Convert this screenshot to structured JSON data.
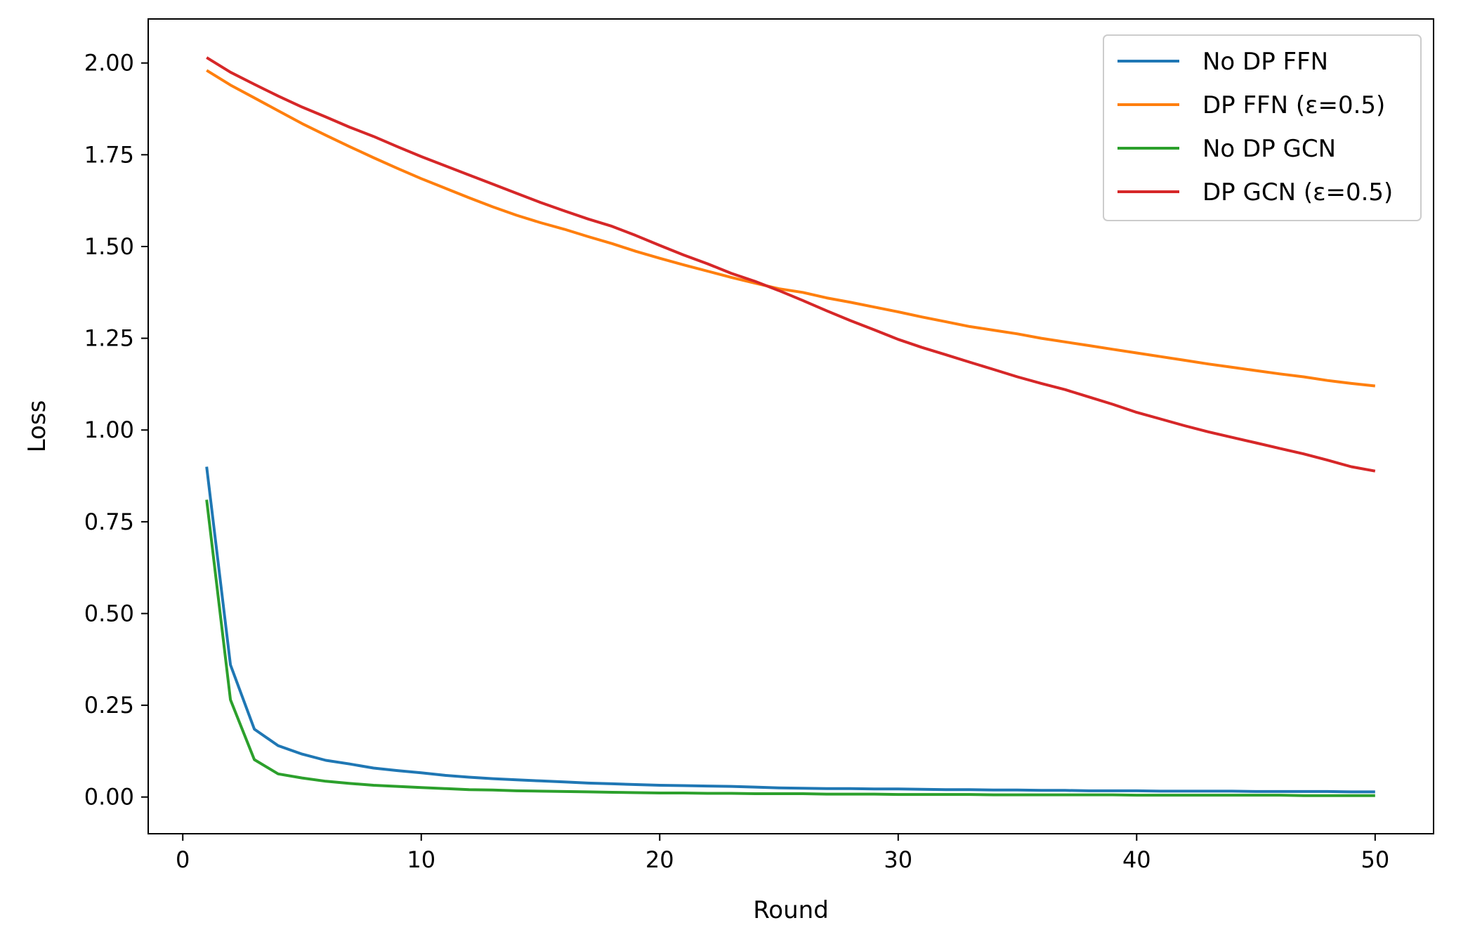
{
  "chart_data": {
    "type": "line",
    "title": "",
    "xlabel": "Round",
    "ylabel": "Loss",
    "xlim": [
      -1.45,
      52.45
    ],
    "ylim": [
      -0.1,
      2.12
    ],
    "xticks": [
      0,
      10,
      20,
      30,
      40,
      50
    ],
    "xtick_labels": [
      "0",
      "10",
      "20",
      "30",
      "40",
      "50"
    ],
    "yticks": [
      0.0,
      0.25,
      0.5,
      0.75,
      1.0,
      1.25,
      1.5,
      1.75,
      2.0
    ],
    "ytick_labels": [
      "0.00",
      "0.25",
      "0.50",
      "0.75",
      "1.00",
      "1.25",
      "1.50",
      "1.75",
      "2.00"
    ],
    "grid": false,
    "legend_position": "top-right",
    "x": [
      1,
      2,
      3,
      4,
      5,
      6,
      7,
      8,
      9,
      10,
      11,
      12,
      13,
      14,
      15,
      16,
      17,
      18,
      19,
      20,
      21,
      22,
      23,
      24,
      25,
      26,
      27,
      28,
      29,
      30,
      31,
      32,
      33,
      34,
      35,
      36,
      37,
      38,
      39,
      40,
      41,
      42,
      43,
      44,
      45,
      46,
      47,
      48,
      49,
      50
    ],
    "series": [
      {
        "name": "No DP FFN",
        "color": "#1f77b4",
        "values": [
          0.9,
          0.36,
          0.185,
          0.14,
          0.117,
          0.1,
          0.09,
          0.079,
          0.072,
          0.066,
          0.059,
          0.054,
          0.05,
          0.047,
          0.044,
          0.041,
          0.038,
          0.036,
          0.034,
          0.032,
          0.031,
          0.03,
          0.029,
          0.027,
          0.025,
          0.024,
          0.023,
          0.023,
          0.022,
          0.022,
          0.021,
          0.02,
          0.02,
          0.019,
          0.019,
          0.018,
          0.018,
          0.017,
          0.017,
          0.017,
          0.016,
          0.016,
          0.016,
          0.016,
          0.015,
          0.015,
          0.015,
          0.015,
          0.014,
          0.014
        ]
      },
      {
        "name": "DP FFN (ε=0.5)",
        "color": "#ff7f0e",
        "values": [
          1.98,
          1.94,
          1.905,
          1.87,
          1.835,
          1.803,
          1.772,
          1.742,
          1.713,
          1.685,
          1.659,
          1.633,
          1.608,
          1.585,
          1.565,
          1.547,
          1.527,
          1.508,
          1.487,
          1.468,
          1.45,
          1.433,
          1.416,
          1.4,
          1.385,
          1.375,
          1.36,
          1.348,
          1.335,
          1.322,
          1.308,
          1.295,
          1.282,
          1.272,
          1.262,
          1.25,
          1.24,
          1.23,
          1.22,
          1.21,
          1.2,
          1.19,
          1.18,
          1.171,
          1.162,
          1.153,
          1.145,
          1.135,
          1.127,
          1.12
        ]
      },
      {
        "name": "No DP GCN",
        "color": "#2ca02c",
        "values": [
          0.81,
          0.265,
          0.102,
          0.063,
          0.052,
          0.043,
          0.037,
          0.032,
          0.029,
          0.026,
          0.023,
          0.02,
          0.019,
          0.017,
          0.016,
          0.015,
          0.014,
          0.013,
          0.012,
          0.011,
          0.011,
          0.01,
          0.01,
          0.009,
          0.009,
          0.009,
          0.008,
          0.008,
          0.008,
          0.007,
          0.007,
          0.007,
          0.007,
          0.006,
          0.006,
          0.006,
          0.006,
          0.006,
          0.006,
          0.005,
          0.005,
          0.005,
          0.005,
          0.005,
          0.005,
          0.005,
          0.004,
          0.004,
          0.004,
          0.004
        ]
      },
      {
        "name": "DP GCN (ε=0.5)",
        "color": "#d62728",
        "values": [
          2.015,
          1.975,
          1.942,
          1.91,
          1.88,
          1.853,
          1.825,
          1.8,
          1.772,
          1.745,
          1.72,
          1.695,
          1.67,
          1.645,
          1.62,
          1.597,
          1.575,
          1.555,
          1.53,
          1.503,
          1.477,
          1.453,
          1.427,
          1.405,
          1.38,
          1.353,
          1.325,
          1.298,
          1.273,
          1.247,
          1.225,
          1.205,
          1.185,
          1.165,
          1.145,
          1.127,
          1.11,
          1.09,
          1.07,
          1.048,
          1.03,
          1.012,
          0.995,
          0.98,
          0.965,
          0.95,
          0.935,
          0.918,
          0.9,
          0.888
        ]
      }
    ]
  }
}
